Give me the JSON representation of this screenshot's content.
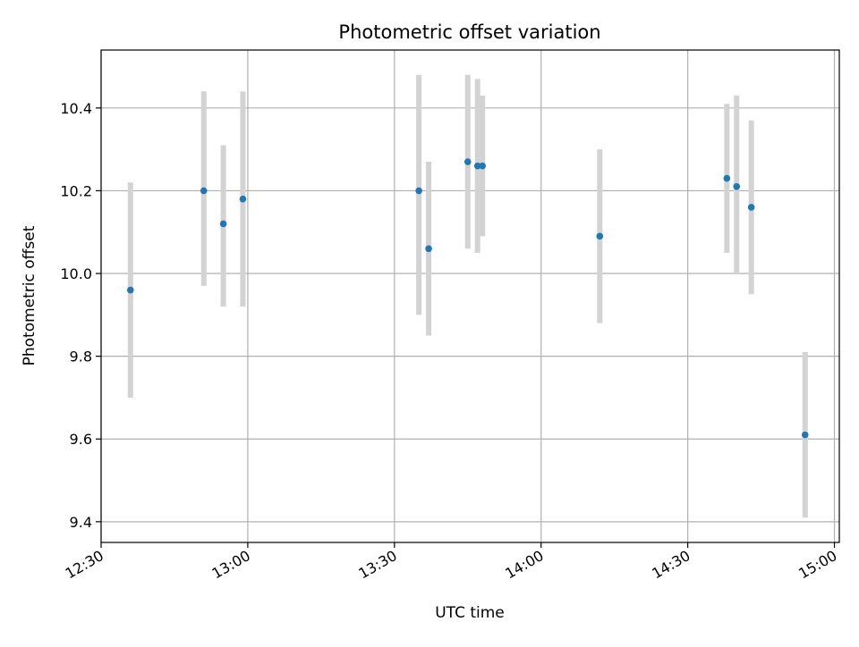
{
  "chart_data": {
    "type": "scatter",
    "title": "Photometric offset variation",
    "xlabel": "UTC time",
    "ylabel": "Photometric offset",
    "x_axis": "time",
    "xlim": [
      "12:30",
      "15:01"
    ],
    "ylim": [
      9.35,
      10.54
    ],
    "grid": true,
    "x_ticks": [
      "12:30",
      "13:00",
      "13:30",
      "14:00",
      "14:30",
      "15:00"
    ],
    "y_ticks": [
      "9.4",
      "9.6",
      "9.8",
      "10.0",
      "10.2",
      "10.4"
    ],
    "points": [
      {
        "time": "12:36",
        "value": 9.96,
        "err_low": 9.7,
        "err_high": 10.22
      },
      {
        "time": "12:51",
        "value": 10.2,
        "err_low": 9.97,
        "err_high": 10.44
      },
      {
        "time": "12:55",
        "value": 10.12,
        "err_low": 9.92,
        "err_high": 10.31
      },
      {
        "time": "12:59",
        "value": 10.18,
        "err_low": 9.92,
        "err_high": 10.44
      },
      {
        "time": "13:35",
        "value": 10.2,
        "err_low": 9.9,
        "err_high": 10.48
      },
      {
        "time": "13:37",
        "value": 10.06,
        "err_low": 9.85,
        "err_high": 10.27
      },
      {
        "time": "13:45",
        "value": 10.27,
        "err_low": 10.06,
        "err_high": 10.48
      },
      {
        "time": "13:47",
        "value": 10.26,
        "err_low": 10.05,
        "err_high": 10.47
      },
      {
        "time": "13:48",
        "value": 10.26,
        "err_low": 10.09,
        "err_high": 10.43
      },
      {
        "time": "14:12",
        "value": 10.09,
        "err_low": 9.88,
        "err_high": 10.3
      },
      {
        "time": "14:38",
        "value": 10.23,
        "err_low": 10.05,
        "err_high": 10.41
      },
      {
        "time": "14:40",
        "value": 10.21,
        "err_low": 10.0,
        "err_high": 10.43
      },
      {
        "time": "14:43",
        "value": 10.16,
        "err_low": 9.95,
        "err_high": 10.37
      },
      {
        "time": "14:54",
        "value": 9.61,
        "err_low": 9.41,
        "err_high": 9.81
      }
    ],
    "colors": {
      "point": "#1f77b4",
      "errorbar": "#d3d3d3",
      "grid": "#b0b0b0",
      "axis": "#000000"
    }
  }
}
